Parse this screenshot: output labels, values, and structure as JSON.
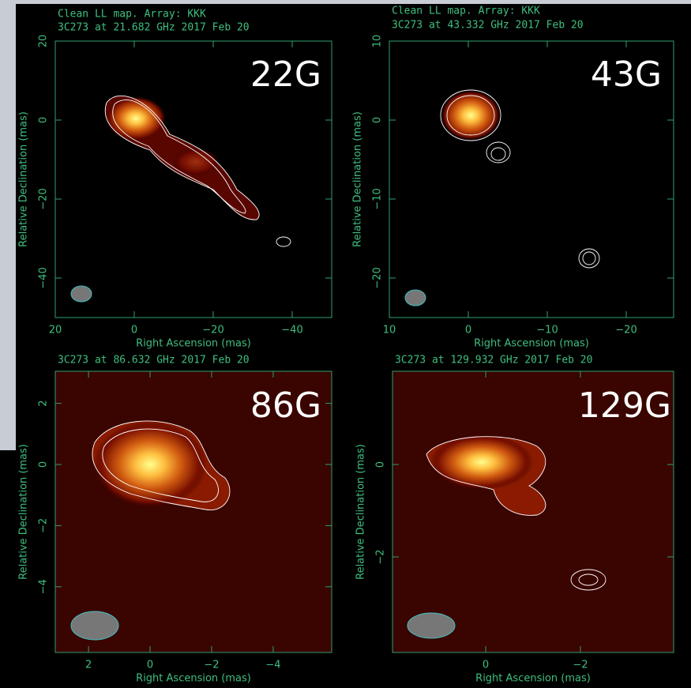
{
  "panels": [
    {
      "header": [
        "Clean LL map.  Array:  KKK",
        "3C273 at 21.682 GHz 2017 Feb 20"
      ],
      "band": "22G",
      "xlabel": "Right Ascension  (mas)",
      "ylabel": "Relative Declination  (mas)",
      "xlim": [
        20,
        -50
      ],
      "ylim": [
        -50,
        20
      ],
      "xticks": [
        20,
        0,
        {
          "value": -20,
          "label": "−20"
        },
        {
          "value": -40,
          "label": "−40"
        }
      ],
      "yticks": [
        20,
        0,
        {
          "value": -20,
          "label": "−20"
        },
        {
          "value": -40,
          "label": "−40"
        }
      ]
    },
    {
      "header": [
        "Clean LL map.  Array:  KKK",
        "3C273 at 43.332 GHz 2017 Feb 20"
      ],
      "band": "43G",
      "xlabel": "Right Ascension  (mas)",
      "ylabel": "Relative Declination  (mas)",
      "xlim": [
        10,
        -26
      ],
      "ylim": [
        -25,
        10
      ],
      "xticks": [
        10,
        0,
        {
          "value": -10,
          "label": "−10"
        },
        {
          "value": -20,
          "label": "−20"
        }
      ],
      "yticks": [
        10,
        0,
        {
          "value": -10,
          "label": "−10"
        },
        {
          "value": -20,
          "label": "−20"
        }
      ]
    },
    {
      "header": [
        "3C273 at 86.632 GHz 2017 Feb 20"
      ],
      "band": "86G",
      "xlabel": "Right Ascension  (mas)",
      "ylabel": "Relative Declination  (mas)",
      "xlim": [
        3.08,
        -5.9
      ],
      "ylim": [
        -6.15,
        3.05
      ],
      "xticks": [
        2,
        0,
        {
          "value": -2,
          "label": "−2"
        },
        {
          "value": -4,
          "label": "−4"
        }
      ],
      "yticks": [
        2,
        0,
        {
          "value": -2,
          "label": "−2"
        },
        {
          "value": -4,
          "label": "−4"
        }
      ]
    },
    {
      "header": [
        "3C273 at 129.932 GHz 2017 Feb 20"
      ],
      "band": "129G",
      "xlabel": "Right Ascension  (mas)",
      "ylabel": "Relative Declination  (mas)",
      "xlim": [
        1.97,
        -3.97
      ],
      "ylim": [
        -4.07,
        2.02
      ],
      "xticks": [
        0,
        {
          "value": -2,
          "label": "−2"
        }
      ],
      "yticks": [
        0,
        {
          "value": -2,
          "label": "−2"
        }
      ]
    }
  ]
}
